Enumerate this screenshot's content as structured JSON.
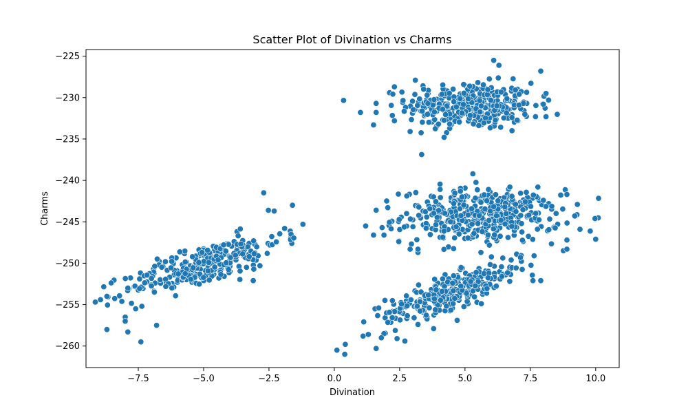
{
  "chart_data": {
    "type": "scatter",
    "title": "Scatter Plot of Divination vs Charms",
    "xlabel": "Divination",
    "ylabel": "Charms",
    "xlim": [
      -9.5,
      10.9
    ],
    "ylim": [
      -262.6,
      -224.2
    ],
    "xticks": [
      -7.5,
      -5.0,
      -2.5,
      0.0,
      2.5,
      5.0,
      7.5,
      10.0
    ],
    "xtick_labels": [
      "−7.5",
      "−5.0",
      "−2.5",
      "0.0",
      "2.5",
      "5.0",
      "7.5",
      "10.0"
    ],
    "yticks": [
      -225,
      -230,
      -235,
      -240,
      -245,
      -250,
      -255,
      -260
    ],
    "ytick_labels": [
      "−225",
      "−230",
      "−235",
      "−240",
      "−245",
      "−250",
      "−255",
      "−260"
    ],
    "grid": false,
    "color": "#1f77b4",
    "clusters": [
      {
        "x_center": 5.2,
        "y_center": -231.0,
        "x_sd": 1.2,
        "y_sd": 1.4,
        "slope": 0.0,
        "n": 360
      },
      {
        "x_center": 5.6,
        "y_center": -244.3,
        "x_sd": 1.5,
        "y_sd": 1.6,
        "slope": 0.0,
        "n": 420
      },
      {
        "x_center": -5.0,
        "y_center": -250.2,
        "x_sd": 1.5,
        "y_sd": 1.2,
        "slope": 1.0,
        "n": 300
      },
      {
        "x_center": 4.6,
        "y_center": -253.3,
        "x_sd": 1.3,
        "y_sd": 1.0,
        "slope": 1.05,
        "n": 300
      }
    ],
    "points": [
      {
        "x": -8.7,
        "y": -254.0
      },
      {
        "x": -8.7,
        "y": -258.0
      },
      {
        "x": -8.0,
        "y": -256.5
      },
      {
        "x": -8.0,
        "y": -257.0
      },
      {
        "x": -7.9,
        "y": -258.3
      },
      {
        "x": -7.4,
        "y": -259.5
      },
      {
        "x": -6.8,
        "y": -257.5
      },
      {
        "x": -7.9,
        "y": -253.0
      },
      {
        "x": -7.6,
        "y": -255.5
      },
      {
        "x": -1.6,
        "y": -243.0
      },
      {
        "x": -1.2,
        "y": -245.3
      },
      {
        "x": -2.7,
        "y": -241.5
      },
      {
        "x": -1.9,
        "y": -245.8
      },
      {
        "x": -2.3,
        "y": -243.7
      },
      {
        "x": -3.1,
        "y": -252.1
      },
      {
        "x": 0.1,
        "y": -260.5
      },
      {
        "x": 0.4,
        "y": -261.0
      },
      {
        "x": 1.6,
        "y": -260.3
      },
      {
        "x": 1.3,
        "y": -258.6
      },
      {
        "x": 1.1,
        "y": -258.8
      },
      {
        "x": 1.9,
        "y": -258.5
      },
      {
        "x": 1.7,
        "y": -255.4
      },
      {
        "x": 2.4,
        "y": -259.1
      },
      {
        "x": 1.8,
        "y": -259.0
      },
      {
        "x": 1.0,
        "y": -231.8
      },
      {
        "x": 1.6,
        "y": -231.8
      },
      {
        "x": 1.5,
        "y": -233.3
      },
      {
        "x": 1.6,
        "y": -230.7
      },
      {
        "x": 2.3,
        "y": -232.8
      },
      {
        "x": 2.3,
        "y": -228.7
      },
      {
        "x": 2.9,
        "y": -234.1
      },
      {
        "x": 4.2,
        "y": -234.8
      },
      {
        "x": 3.1,
        "y": -227.9
      },
      {
        "x": 6.1,
        "y": -225.5
      },
      {
        "x": 6.3,
        "y": -226.1
      },
      {
        "x": 7.9,
        "y": -226.8
      },
      {
        "x": 8.1,
        "y": -229.5
      },
      {
        "x": 8.2,
        "y": -230.3
      },
      {
        "x": 8.1,
        "y": -232.3
      },
      {
        "x": 8.0,
        "y": -230.8
      },
      {
        "x": 7.7,
        "y": -232.3
      },
      {
        "x": 6.8,
        "y": -234.0
      },
      {
        "x": 5.3,
        "y": -239.2
      },
      {
        "x": 1.2,
        "y": -245.5
      },
      {
        "x": 1.5,
        "y": -246.6
      },
      {
        "x": 1.9,
        "y": -246.6
      },
      {
        "x": 1.6,
        "y": -243.6
      },
      {
        "x": 2.9,
        "y": -248.3
      },
      {
        "x": 10.0,
        "y": -247.1
      },
      {
        "x": 9.4,
        "y": -245.9
      },
      {
        "x": 9.2,
        "y": -244.3
      },
      {
        "x": 9.3,
        "y": -242.9
      },
      {
        "x": 8.9,
        "y": -241.7
      },
      {
        "x": 8.9,
        "y": -248.3
      },
      {
        "x": 8.9,
        "y": -247.2
      },
      {
        "x": 7.9,
        "y": -252.1
      },
      {
        "x": 7.6,
        "y": -252.1
      },
      {
        "x": 3.8,
        "y": -257.9
      },
      {
        "x": 3.2,
        "y": -257.4
      },
      {
        "x": 2.7,
        "y": -259.4
      },
      {
        "x": 4.7,
        "y": -256.9
      },
      {
        "x": 3.2,
        "y": -248.7
      },
      {
        "x": 3.2,
        "y": -248.3
      }
    ]
  }
}
